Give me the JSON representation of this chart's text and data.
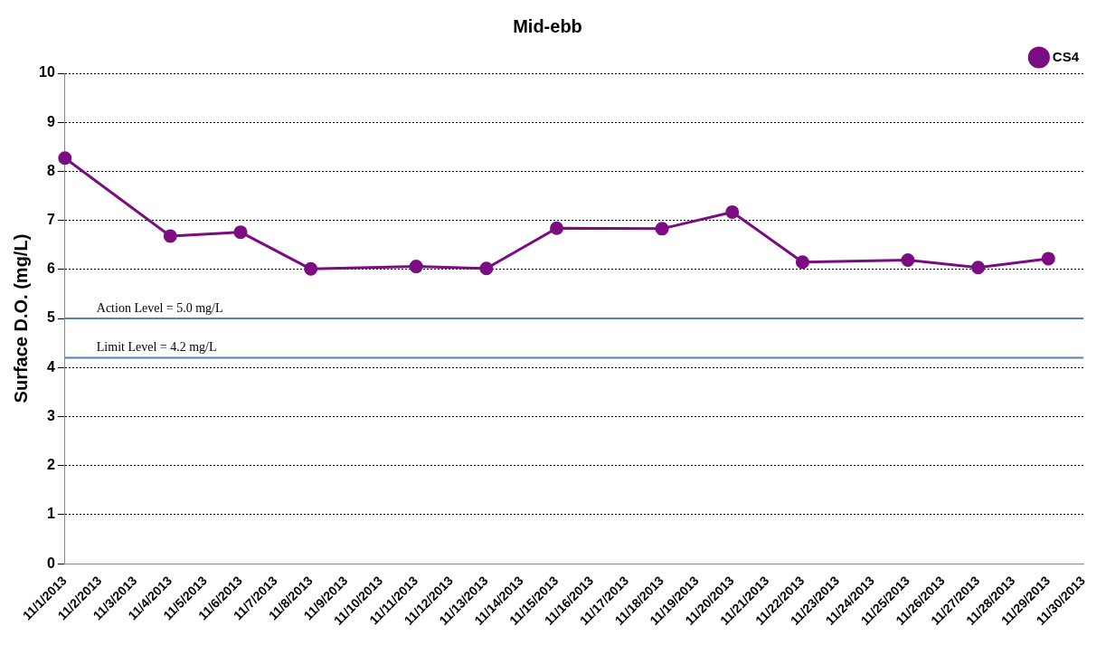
{
  "chart_data": {
    "type": "line",
    "title": "Mid-ebb",
    "ylabel": "Surface D.O. (mg/L)",
    "categories": [
      "11/1/2013",
      "11/2/2013",
      "11/3/2013",
      "11/4/2013",
      "11/5/2013",
      "11/6/2013",
      "11/7/2013",
      "11/8/2013",
      "11/9/2013",
      "11/10/2013",
      "11/11/2013",
      "11/12/2013",
      "11/13/2013",
      "11/14/2013",
      "11/15/2013",
      "11/16/2013",
      "11/17/2013",
      "11/18/2013",
      "11/19/2013",
      "11/20/2013",
      "11/21/2013",
      "11/22/2013",
      "11/23/2013",
      "11/24/2013",
      "11/25/2013",
      "11/26/2013",
      "11/27/2013",
      "11/28/2013",
      "11/29/2013",
      "11/30/2013"
    ],
    "series": [
      {
        "name": "CS4",
        "color": "#7b0c82",
        "values": [
          8.27,
          null,
          null,
          6.68,
          null,
          6.76,
          null,
          6.01,
          null,
          null,
          6.06,
          null,
          6.02,
          null,
          6.84,
          null,
          null,
          6.83,
          null,
          7.17,
          null,
          6.15,
          null,
          null,
          6.19,
          null,
          6.04,
          null,
          6.22,
          null
        ]
      }
    ],
    "ylim": [
      0,
      10
    ],
    "yticks": [
      0,
      1,
      2,
      3,
      4,
      5,
      6,
      7,
      8,
      9,
      10
    ],
    "grid": "y",
    "legend": "top right",
    "marker": "circle",
    "line_style": "solid",
    "ref_lines": [
      {
        "axis": "y",
        "value": 5.0,
        "label": "Action Level = 5.0 mg/L",
        "color": "#4f81bd"
      },
      {
        "axis": "y",
        "value": 4.2,
        "label": "Limit Level = 4.2 mg/L",
        "color": "#4f81bd"
      }
    ]
  }
}
